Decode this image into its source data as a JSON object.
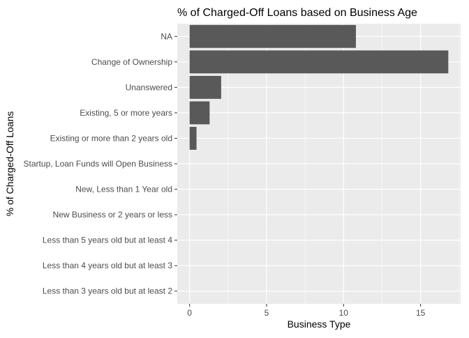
{
  "chart_data": {
    "type": "bar",
    "orientation": "horizontal",
    "title": "% of Charged-Off Loans based on Business Age",
    "xlabel": "Business Type",
    "ylabel": "% of Charged-Off Loans",
    "categories": [
      "NA",
      "Change of Ownership",
      "Unanswered",
      "Existing, 5 or more years",
      "Existing or more than 2 years old",
      "Startup, Loan Funds will Open Business",
      "New, Less than 1 Year old",
      "New Business or 2 years or less",
      "Less than 5 years old but at least 4",
      "Less than 4 years old but at least 3",
      "Less than 3 years old but at least 2"
    ],
    "values": [
      10.8,
      16.8,
      2.05,
      1.3,
      0.45,
      0,
      0,
      0,
      0,
      0,
      0
    ],
    "xlim": [
      -0.8,
      17.6
    ],
    "xticks": [
      0,
      5,
      10,
      15
    ],
    "xtick_labels": [
      "0",
      "5",
      "10",
      "15"
    ],
    "grid": true,
    "colors": {
      "bar": "#595959",
      "panel": "#ebebeb",
      "grid": "#ffffff"
    }
  }
}
